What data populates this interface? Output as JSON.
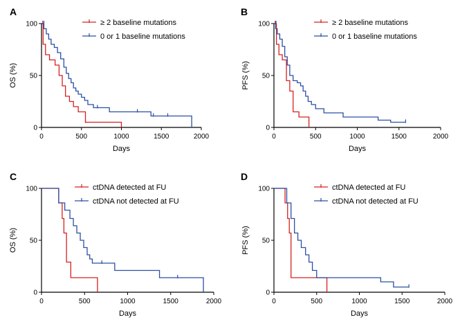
{
  "colors": {
    "red": "#d62020",
    "blue": "#2b4fa3",
    "axis": "#000000"
  },
  "chart_data": [
    {
      "type": "line",
      "panel_label": "A",
      "xlabel": "Days",
      "ylabel": "OS  (%)",
      "xlim": [
        0,
        2000
      ],
      "ylim": [
        0,
        100
      ],
      "xticks": [
        0,
        500,
        1000,
        1500,
        2000
      ],
      "yticks": [
        0,
        50,
        100
      ],
      "legend": "top-right",
      "series": [
        {
          "name": "≥ 2 baseline mutations",
          "color": "red",
          "x": [
            0,
            20,
            50,
            100,
            170,
            220,
            260,
            300,
            350,
            400,
            460,
            550,
            1000
          ],
          "y": [
            100,
            80,
            70,
            65,
            60,
            50,
            40,
            30,
            25,
            20,
            15,
            5,
            0
          ],
          "censored": [
            [
              15,
              100
            ],
            [
              550,
              5
            ]
          ]
        },
        {
          "name": "0 or 1 baseline mutations",
          "color": "blue",
          "x": [
            0,
            30,
            60,
            90,
            120,
            160,
            200,
            240,
            280,
            310,
            340,
            370,
            400,
            430,
            460,
            500,
            540,
            580,
            650,
            850,
            1370,
            1880
          ],
          "y": [
            100,
            95,
            90,
            85,
            80,
            77,
            72,
            66,
            58,
            52,
            47,
            43,
            38,
            35,
            32,
            29,
            26,
            22,
            19,
            15,
            11,
            0
          ],
          "censored": [
            [
              30,
              100
            ],
            [
              700,
              19
            ],
            [
              1200,
              15
            ],
            [
              1400,
              11
            ],
            [
              1580,
              11
            ]
          ]
        }
      ]
    },
    {
      "type": "line",
      "panel_label": "B",
      "xlabel": "Days",
      "ylabel": "PFS  (%)",
      "xlim": [
        0,
        2000
      ],
      "ylim": [
        0,
        100
      ],
      "xticks": [
        0,
        500,
        1000,
        1500,
        2000
      ],
      "yticks": [
        0,
        50,
        100
      ],
      "legend": "top-right",
      "series": [
        {
          "name": "≥ 2 baseline mutations",
          "color": "red",
          "x": [
            0,
            30,
            60,
            100,
            150,
            190,
            230,
            300,
            420
          ],
          "y": [
            100,
            80,
            70,
            65,
            45,
            35,
            15,
            10,
            0
          ],
          "censored": [
            [
              15,
              100
            ]
          ]
        },
        {
          "name": "0 or 1 baseline mutations",
          "color": "blue",
          "x": [
            0,
            20,
            40,
            70,
            100,
            130,
            160,
            190,
            230,
            280,
            320,
            350,
            380,
            410,
            450,
            500,
            600,
            830,
            1250,
            1400,
            1580
          ],
          "y": [
            100,
            95,
            90,
            85,
            78,
            68,
            60,
            50,
            45,
            43,
            40,
            35,
            30,
            25,
            22,
            18,
            14,
            10,
            7,
            5,
            5
          ],
          "censored": [
            [
              25,
              100
            ],
            [
              1580,
              5
            ]
          ]
        }
      ]
    },
    {
      "type": "line",
      "panel_label": "C",
      "xlabel": "Days",
      "ylabel": "OS  (%)",
      "xlim": [
        0,
        2000
      ],
      "ylim": [
        0,
        100
      ],
      "xticks": [
        0,
        500,
        1000,
        1500,
        2000
      ],
      "yticks": [
        0,
        50,
        100
      ],
      "legend": "top-right",
      "series": [
        {
          "name": "ctDNA detected at FU",
          "color": "red",
          "x": [
            0,
            200,
            240,
            260,
            290,
            340,
            650
          ],
          "y": [
            100,
            86,
            71,
            57,
            29,
            14,
            0
          ],
          "censored": []
        },
        {
          "name": "ctDNA not detected at FU",
          "color": "blue",
          "x": [
            0,
            200,
            270,
            330,
            370,
            410,
            450,
            490,
            530,
            560,
            590,
            850,
            1370,
            1880
          ],
          "y": [
            100,
            86,
            79,
            71,
            64,
            57,
            50,
            43,
            36,
            32,
            28,
            21,
            14,
            0
          ],
          "censored": [
            [
              700,
              28
            ],
            [
              1580,
              14
            ]
          ]
        }
      ]
    },
    {
      "type": "line",
      "panel_label": "D",
      "xlabel": "Days",
      "ylabel": "PFS  (%)",
      "xlim": [
        0,
        2000
      ],
      "ylim": [
        0,
        100
      ],
      "xticks": [
        0,
        500,
        1000,
        1500,
        2000
      ],
      "yticks": [
        0,
        50,
        100
      ],
      "legend": "top-right",
      "series": [
        {
          "name": "ctDNA detected at FU",
          "color": "red",
          "x": [
            0,
            130,
            160,
            180,
            200,
            620
          ],
          "y": [
            100,
            86,
            71,
            57,
            14,
            0
          ],
          "censored": []
        },
        {
          "name": "ctDNA not detected at FU",
          "color": "blue",
          "x": [
            0,
            150,
            200,
            240,
            280,
            320,
            370,
            410,
            450,
            500,
            1250,
            1400,
            1580
          ],
          "y": [
            100,
            86,
            71,
            57,
            50,
            43,
            36,
            29,
            21,
            14,
            10,
            5,
            5
          ],
          "censored": [
            [
              1580,
              5
            ]
          ]
        }
      ]
    }
  ]
}
